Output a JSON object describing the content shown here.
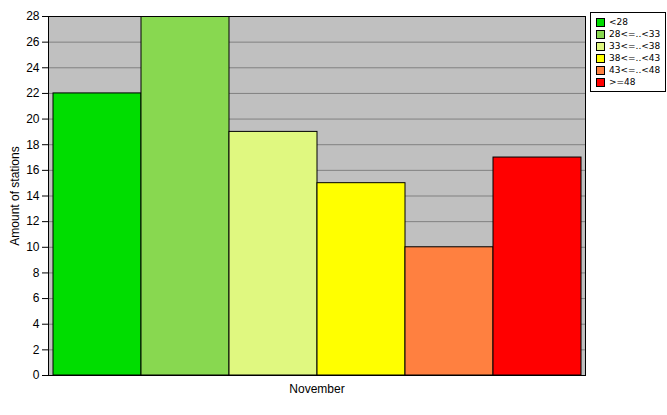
{
  "chart_data": {
    "type": "bar",
    "categories": [
      "November"
    ],
    "y_label": "Amount of stations",
    "series": [
      {
        "name": "<28",
        "color": "#00dd00",
        "values": [
          22
        ]
      },
      {
        "name": "28<=..<33",
        "color": "#88d850",
        "values": [
          28
        ]
      },
      {
        "name": "33<=..<38",
        "color": "#e0f880",
        "values": [
          19
        ]
      },
      {
        "name": "38<=..<43",
        "color": "#ffff00",
        "values": [
          15
        ]
      },
      {
        "name": "43<=..<48",
        "color": "#ff8040",
        "values": [
          10
        ]
      },
      {
        "name": ">=48",
        "color": "#ff0000",
        "values": [
          17
        ]
      }
    ],
    "ylim": [
      0,
      28
    ],
    "yticks": [
      0,
      2,
      4,
      6,
      8,
      10,
      12,
      14,
      16,
      18,
      20,
      22,
      24,
      26,
      28
    ],
    "grid": true,
    "legend": "top-right"
  }
}
